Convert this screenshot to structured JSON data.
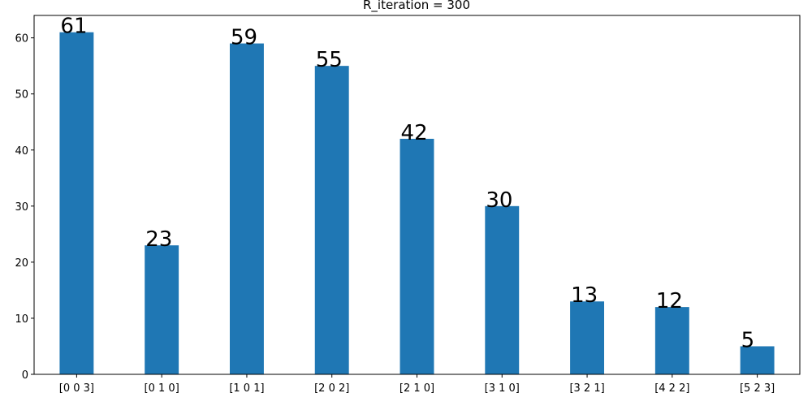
{
  "chart_data": {
    "type": "bar",
    "title": "R_iteration = 300",
    "xlabel": "",
    "ylabel": "",
    "categories": [
      "[0 0 3]",
      "[0 1 0]",
      "[1 0 1]",
      "[2 0 2]",
      "[2 1 0]",
      "[3 1 0]",
      "[3 2 1]",
      "[4 2 2]",
      "[5 2 3]"
    ],
    "values": [
      61,
      23,
      59,
      55,
      42,
      30,
      13,
      12,
      5
    ],
    "data_labels": [
      "61",
      "23",
      "59",
      "55",
      "42",
      "30",
      "13",
      "12",
      "5"
    ],
    "ylim": [
      0,
      64
    ],
    "yticks": [
      0,
      10,
      20,
      30,
      40,
      50,
      60
    ],
    "grid": false,
    "bar_color": "#1f77b4"
  }
}
